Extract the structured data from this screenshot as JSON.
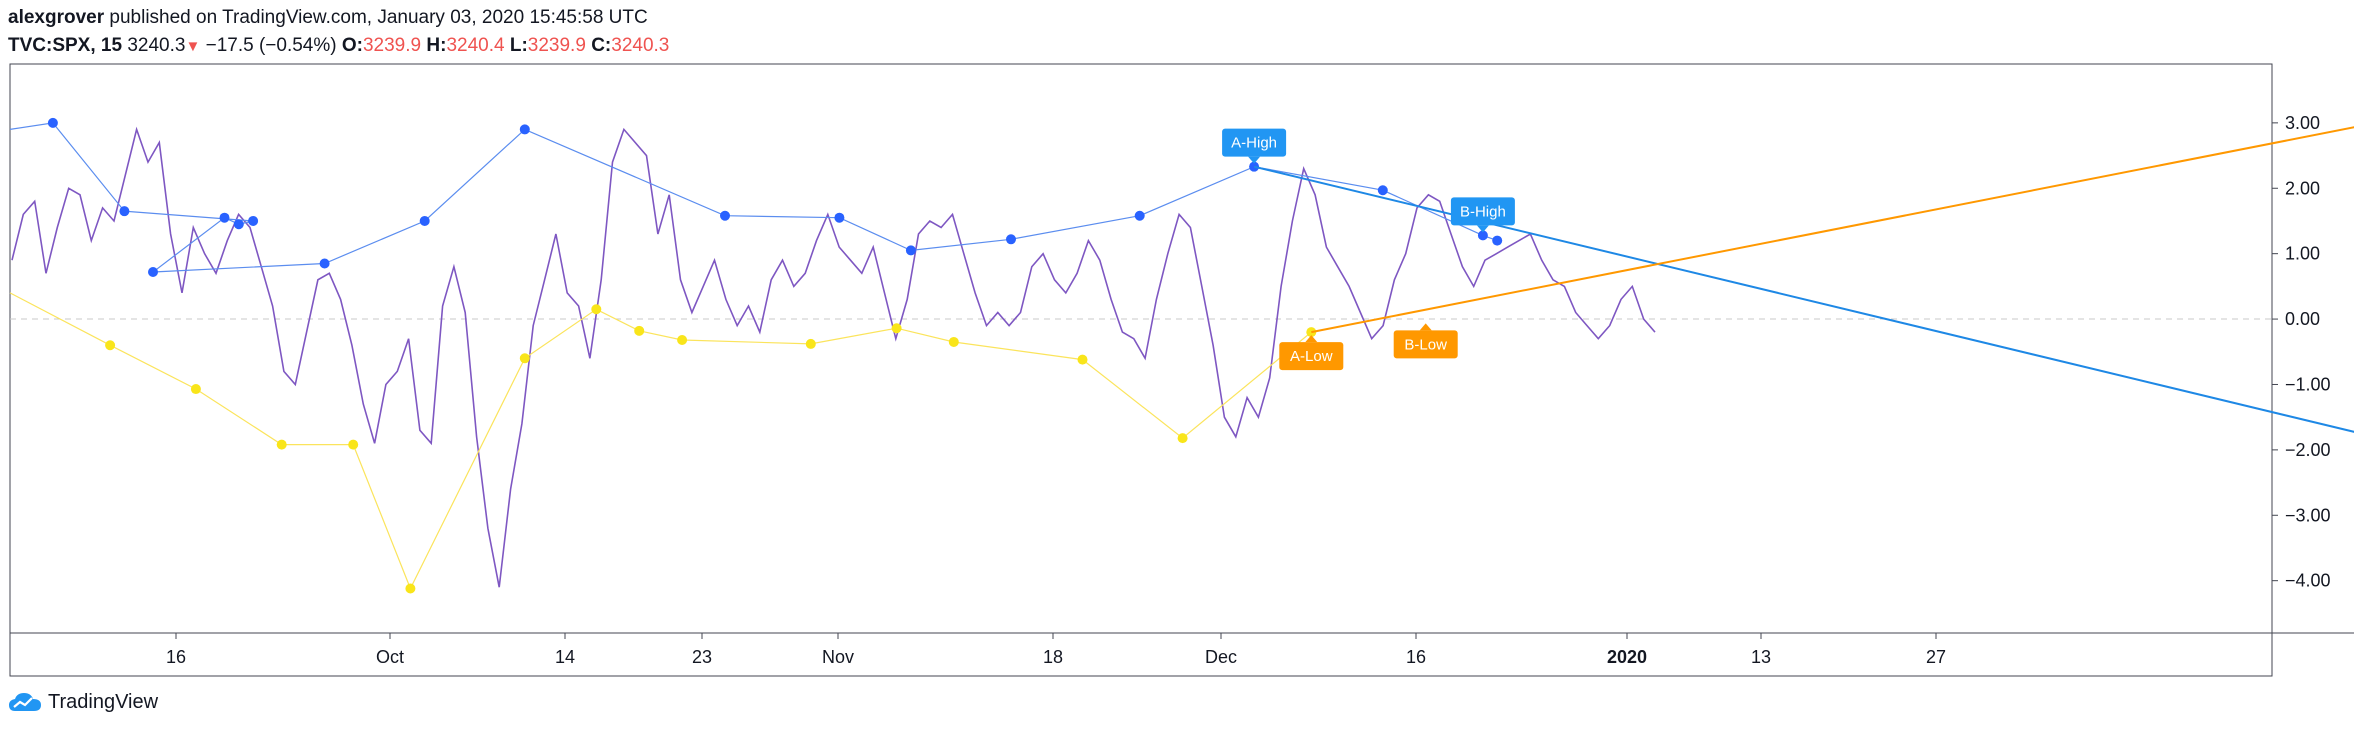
{
  "header": {
    "author": "alexgrover",
    "published": " published on TradingView.com, January 03, 2020 15:45:58 UTC",
    "symbol": "TVC:SPX, 15",
    "last": "3240.3",
    "arrow": "▼",
    "change": "−17.5 (−0.54%)",
    "o_label": "O:",
    "o_value": "3239.9",
    "h_label": "H:",
    "h_value": "3240.4",
    "l_label": "L:",
    "l_value": "3239.9",
    "c_label": "C:",
    "c_value": "3240.3"
  },
  "footer": {
    "brand": "TradingView"
  },
  "colors": {
    "price": "#7e57c2",
    "high_pivots": "#2962ff",
    "high_line": "#5b8def",
    "low_pivots": "#f9e51a",
    "low_line": "#fbe45c",
    "trend_high": "#1e88e5",
    "trend_low": "#ff9800",
    "label_high": "#2196f3",
    "label_low": "#ff9800"
  },
  "chart_data": {
    "type": "line",
    "ylim": [
      -4.8,
      3.9
    ],
    "y_ticks": [
      "3.00",
      "2.00",
      "1.00",
      "0.00",
      "−1.00",
      "−2.00",
      "−3.00",
      "−4.00"
    ],
    "y_tick_values": [
      3,
      2,
      1,
      0,
      -1,
      -2,
      -3,
      -4
    ],
    "x_ticks": [
      "16",
      "Oct",
      "14",
      "23",
      "Nov",
      "18",
      "Dec",
      "16",
      "2020",
      "13",
      "27"
    ],
    "grid": false,
    "zero_line": "dashed",
    "series": [
      {
        "role": "oscillator",
        "values": [
          0.9,
          1.6,
          1.8,
          0.7,
          1.4,
          2.0,
          1.9,
          1.2,
          1.7,
          1.5,
          2.2,
          2.9,
          2.4,
          2.7,
          1.3,
          0.4,
          1.4,
          1.0,
          0.7,
          1.2,
          1.6,
          1.4,
          0.8,
          0.2,
          -0.8,
          -1.0,
          -0.2,
          0.6,
          0.7,
          0.3,
          -0.4,
          -1.3,
          -1.9,
          -1.0,
          -0.8,
          -0.3,
          -1.7,
          -1.9,
          0.2,
          0.8,
          0.1,
          -1.8,
          -3.2,
          -4.1,
          -2.6,
          -1.6,
          -0.1,
          0.6,
          1.3,
          0.4,
          0.2,
          -0.6,
          0.6,
          2.4,
          2.9,
          2.7,
          2.5,
          1.3,
          1.9,
          0.6,
          0.1,
          0.5,
          0.9,
          0.3,
          -0.1,
          0.2,
          -0.2,
          0.6,
          0.9,
          0.5,
          0.7,
          1.2,
          1.6,
          1.1,
          0.9,
          0.7,
          1.1,
          0.4,
          -0.3,
          0.3,
          1.3,
          1.5,
          1.4,
          1.6,
          1.0,
          0.4,
          -0.1,
          0.1,
          -0.1,
          0.1,
          0.8,
          1.0,
          0.6,
          0.4,
          0.7,
          1.2,
          0.9,
          0.3,
          -0.2,
          -0.3,
          -0.6,
          0.3,
          1.0,
          1.6,
          1.4,
          0.5,
          -0.4,
          -1.5,
          -1.8,
          -1.2,
          -1.5,
          -0.9,
          0.5,
          1.5,
          2.3,
          1.9,
          1.1,
          0.8,
          0.5,
          0.1,
          -0.3,
          -0.1,
          0.6,
          1.0,
          1.7,
          1.9,
          1.8,
          1.3,
          0.8,
          0.5,
          0.9,
          1.0,
          1.1,
          1.2,
          1.3,
          0.9,
          0.6,
          0.5,
          0.1,
          -0.1,
          -0.3,
          -0.1,
          0.3,
          0.5,
          0.0,
          -0.2
        ]
      },
      {
        "role": "pivot-highs",
        "points": [
          [
            -0.06,
            2.9
          ],
          [
            0.03,
            3.0
          ],
          [
            0.08,
            1.65
          ],
          [
            0.17,
            1.5
          ],
          [
            0.16,
            1.45
          ],
          [
            0.15,
            1.55
          ],
          [
            0.1,
            0.72
          ],
          [
            0.22,
            0.85
          ],
          [
            0.29,
            1.5
          ],
          [
            0.36,
            2.9
          ],
          [
            0.5,
            1.58
          ],
          [
            0.58,
            1.55
          ],
          [
            0.63,
            1.05
          ],
          [
            0.7,
            1.22
          ],
          [
            0.79,
            1.58
          ],
          [
            0.87,
            2.33
          ],
          [
            0.96,
            1.97
          ],
          [
            1.03,
            1.28
          ],
          [
            1.04,
            1.2
          ]
        ]
      },
      {
        "role": "pivot-lows",
        "points": [
          [
            -0.06,
            0.4
          ],
          [
            0.07,
            -0.4
          ],
          [
            0.13,
            -1.07
          ],
          [
            0.19,
            -1.92
          ],
          [
            0.24,
            -1.92
          ],
          [
            0.28,
            -4.12
          ],
          [
            0.36,
            -0.6
          ],
          [
            0.41,
            0.15
          ],
          [
            0.44,
            -0.18
          ],
          [
            0.47,
            -0.32
          ],
          [
            0.56,
            -0.38
          ],
          [
            0.62,
            -0.14
          ],
          [
            0.66,
            -0.35
          ],
          [
            0.75,
            -0.62
          ],
          [
            0.82,
            -1.82
          ],
          [
            0.91,
            -0.2
          ]
        ]
      }
    ],
    "trendlines": [
      {
        "name": "A-High to B-High",
        "from": [
          0.87,
          2.33
        ],
        "to": [
          1.72,
          -2.15
        ]
      },
      {
        "name": "A-Low to B-Low",
        "from": [
          0.91,
          -0.2
        ],
        "to": [
          1.72,
          3.28
        ]
      }
    ],
    "annotations": [
      {
        "text": "A-High",
        "kind": "high",
        "at": [
          0.87,
          2.33
        ]
      },
      {
        "text": "B-High",
        "kind": "high",
        "at": [
          1.03,
          1.28
        ]
      },
      {
        "text": "A-Low",
        "kind": "low",
        "at": [
          0.91,
          -0.2
        ]
      },
      {
        "text": "B-Low",
        "kind": "low",
        "at": [
          0.99,
          -0.02
        ]
      }
    ]
  }
}
